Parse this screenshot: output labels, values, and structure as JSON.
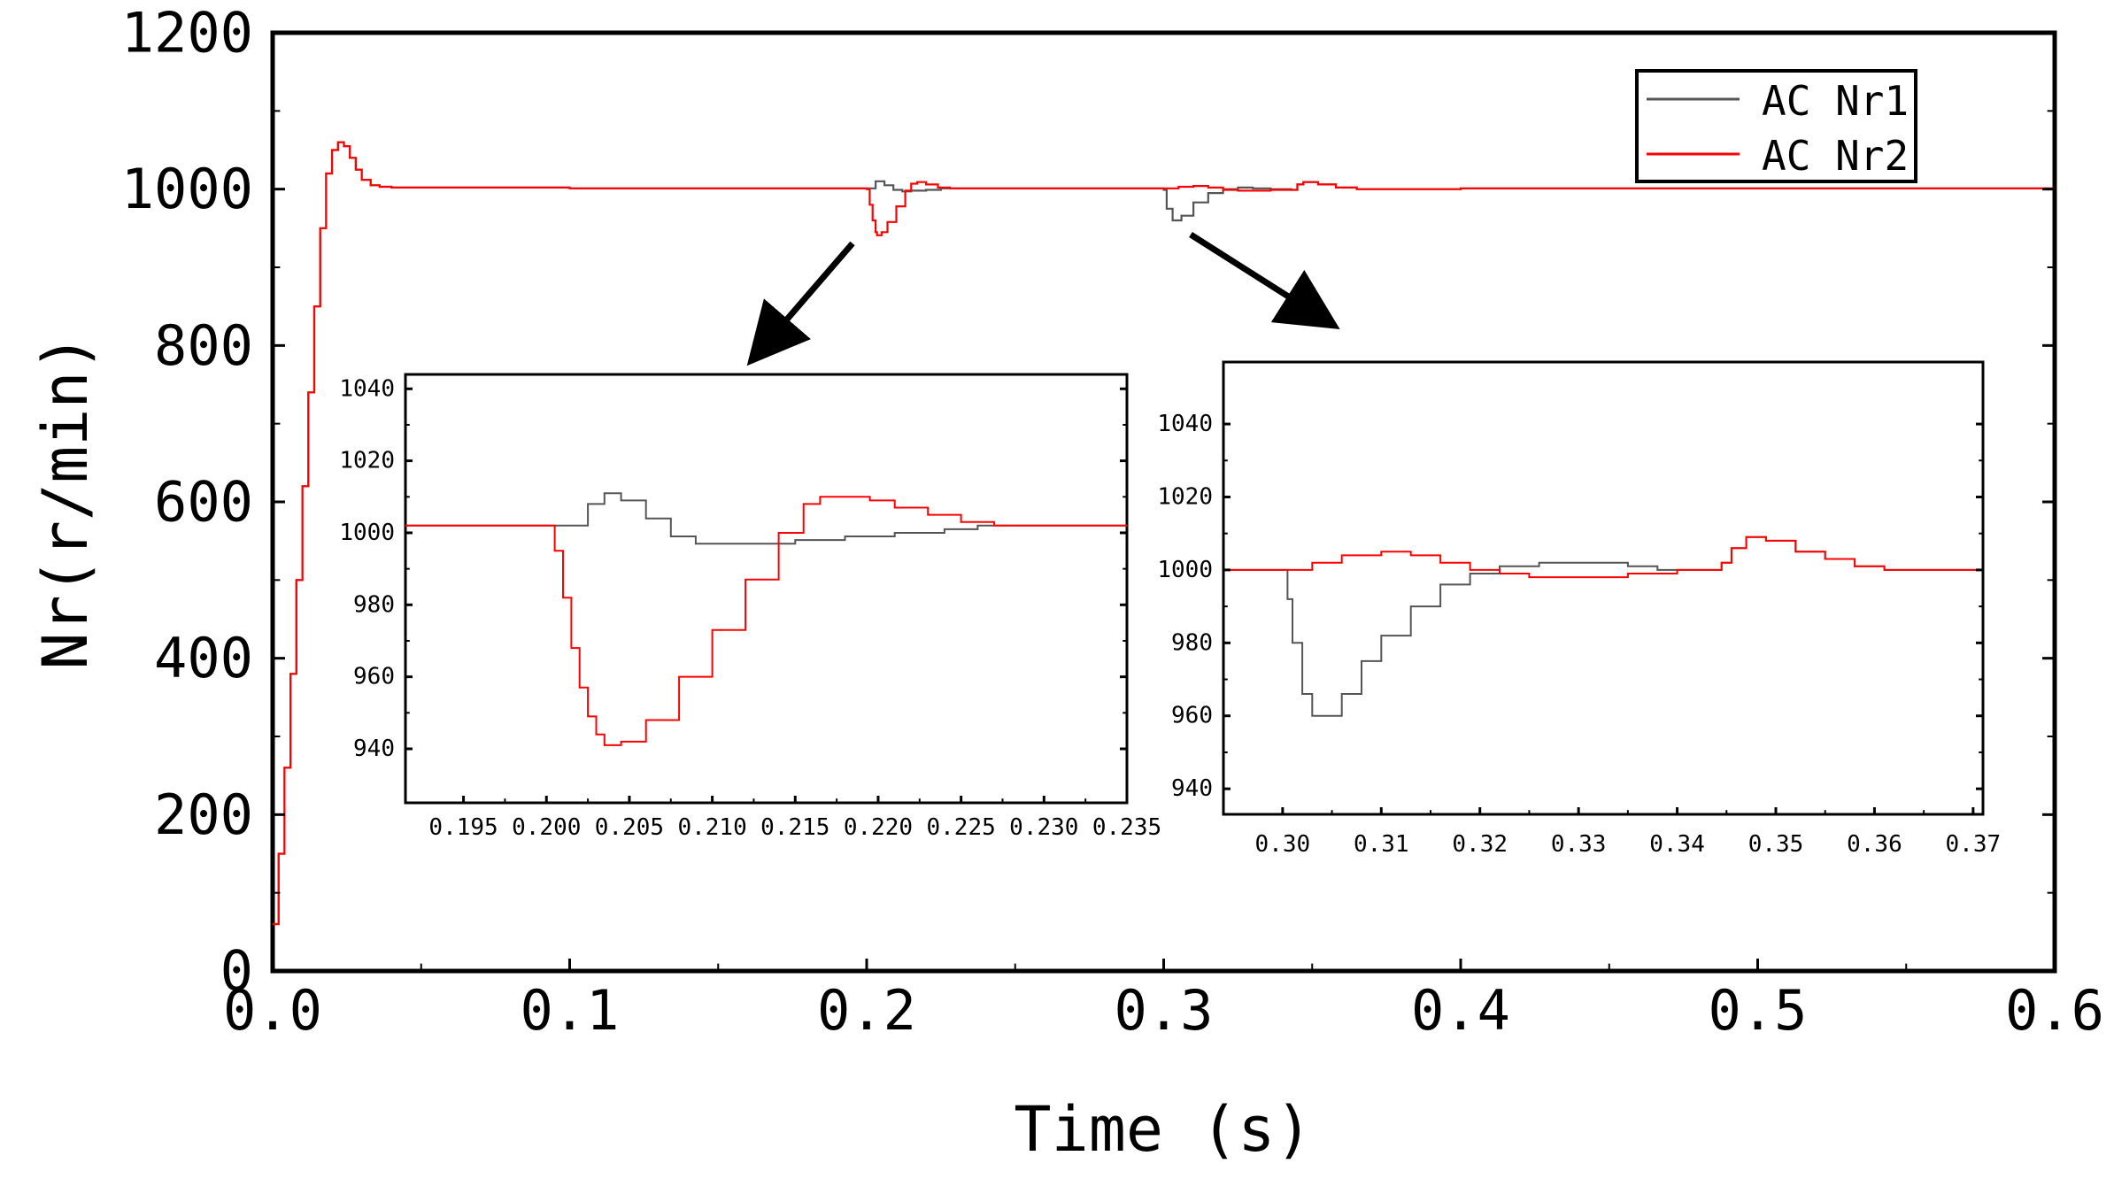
{
  "chart_data": [
    {
      "id": "main",
      "type": "line",
      "title": "",
      "xlabel": "Time (s)",
      "ylabel": "Nr(r/min)",
      "xlim": [
        0,
        0.6
      ],
      "ylim": [
        0,
        1200
      ],
      "xticks": [
        0.0,
        0.1,
        0.2,
        0.3,
        0.4,
        0.5,
        0.6
      ],
      "xtick_labels": [
        "0.0",
        "0.1",
        "0.2",
        "0.3",
        "0.4",
        "0.5",
        "0.6"
      ],
      "yticks": [
        0,
        200,
        400,
        600,
        800,
        1000,
        1200
      ],
      "ytick_labels": [
        "0",
        "200",
        "400",
        "600",
        "800",
        "1000",
        "1200"
      ],
      "grid": false,
      "legend_position": "top-right",
      "series": [
        {
          "name": "AC Nr1",
          "color": "#555555",
          "points": [
            [
              0.0,
              60
            ],
            [
              0.002,
              150
            ],
            [
              0.004,
              260
            ],
            [
              0.006,
              380
            ],
            [
              0.008,
              500
            ],
            [
              0.01,
              620
            ],
            [
              0.012,
              740
            ],
            [
              0.014,
              850
            ],
            [
              0.016,
              950
            ],
            [
              0.018,
              1020
            ],
            [
              0.02,
              1050
            ],
            [
              0.022,
              1060
            ],
            [
              0.024,
              1055
            ],
            [
              0.026,
              1040
            ],
            [
              0.028,
              1025
            ],
            [
              0.03,
              1012
            ],
            [
              0.033,
              1005
            ],
            [
              0.036,
              1003
            ],
            [
              0.04,
              1002
            ],
            [
              0.1,
              1001
            ],
            [
              0.198,
              1001
            ],
            [
              0.2,
              1001
            ],
            [
              0.203,
              1010
            ],
            [
              0.206,
              1005
            ],
            [
              0.209,
              999
            ],
            [
              0.212,
              997
            ],
            [
              0.215,
              998
            ],
            [
              0.22,
              999
            ],
            [
              0.225,
              1001
            ],
            [
              0.298,
              1001
            ],
            [
              0.3,
              999
            ],
            [
              0.301,
              975
            ],
            [
              0.303,
              960
            ],
            [
              0.306,
              966
            ],
            [
              0.31,
              983
            ],
            [
              0.315,
              995
            ],
            [
              0.32,
              1000
            ],
            [
              0.325,
              1002
            ],
            [
              0.33,
              1001
            ],
            [
              0.336,
              1000
            ],
            [
              0.343,
              999
            ],
            [
              0.345,
              1006
            ],
            [
              0.347,
              1009
            ],
            [
              0.352,
              1006
            ],
            [
              0.358,
              1002
            ],
            [
              0.365,
              1000
            ],
            [
              0.4,
              1001
            ],
            [
              0.5,
              1001
            ],
            [
              0.6,
              1001
            ]
          ]
        },
        {
          "name": "AC Nr2",
          "color": "#ff0000",
          "points": [
            [
              0.0,
              60
            ],
            [
              0.002,
              150
            ],
            [
              0.004,
              260
            ],
            [
              0.006,
              380
            ],
            [
              0.008,
              500
            ],
            [
              0.01,
              620
            ],
            [
              0.012,
              740
            ],
            [
              0.014,
              850
            ],
            [
              0.016,
              950
            ],
            [
              0.018,
              1020
            ],
            [
              0.02,
              1050
            ],
            [
              0.022,
              1060
            ],
            [
              0.024,
              1055
            ],
            [
              0.026,
              1040
            ],
            [
              0.028,
              1025
            ],
            [
              0.03,
              1012
            ],
            [
              0.033,
              1005
            ],
            [
              0.036,
              1003
            ],
            [
              0.04,
              1002
            ],
            [
              0.1,
              1001
            ],
            [
              0.198,
              1001
            ],
            [
              0.2,
              1000
            ],
            [
              0.201,
              980
            ],
            [
              0.202,
              960
            ],
            [
              0.203,
              945
            ],
            [
              0.2035,
              941
            ],
            [
              0.205,
              945
            ],
            [
              0.207,
              958
            ],
            [
              0.21,
              978
            ],
            [
              0.213,
              998
            ],
            [
              0.215,
              1007
            ],
            [
              0.217,
              1009
            ],
            [
              0.22,
              1006
            ],
            [
              0.224,
              1002
            ],
            [
              0.228,
              1001
            ],
            [
              0.298,
              1001
            ],
            [
              0.3,
              1001
            ],
            [
              0.305,
              1003
            ],
            [
              0.31,
              1004
            ],
            [
              0.315,
              1002
            ],
            [
              0.32,
              999
            ],
            [
              0.325,
              998
            ],
            [
              0.33,
              998
            ],
            [
              0.336,
              999
            ],
            [
              0.343,
              999
            ],
            [
              0.345,
              1006
            ],
            [
              0.347,
              1009
            ],
            [
              0.352,
              1006
            ],
            [
              0.358,
              1002
            ],
            [
              0.365,
              1000
            ],
            [
              0.4,
              1001
            ],
            [
              0.5,
              1001
            ],
            [
              0.6,
              1001
            ]
          ]
        }
      ]
    },
    {
      "id": "inset-1",
      "type": "line",
      "title": "",
      "xlabel": "",
      "ylabel": "",
      "xlim": [
        0.1915,
        0.235
      ],
      "ylim": [
        925,
        1044
      ],
      "xticks": [
        0.195,
        0.2,
        0.205,
        0.21,
        0.215,
        0.22,
        0.225,
        0.23,
        0.235
      ],
      "xtick_labels": [
        "0.195",
        "0.200",
        "0.205",
        "0.210",
        "0.215",
        "0.220",
        "0.225",
        "0.230",
        "0.235"
      ],
      "yticks": [
        940,
        960,
        980,
        1000,
        1020,
        1040
      ],
      "ytick_labels": [
        "940",
        "960",
        "980",
        "1000",
        "1020",
        "1040"
      ],
      "grid": false,
      "series": [
        {
          "name": "AC Nr1",
          "color": "#555555",
          "points": [
            [
              0.1915,
              1002
            ],
            [
              0.2,
              1002
            ],
            [
              0.201,
              1002
            ],
            [
              0.2025,
              1008
            ],
            [
              0.2035,
              1011
            ],
            [
              0.2045,
              1009
            ],
            [
              0.206,
              1004
            ],
            [
              0.2075,
              999
            ],
            [
              0.209,
              997
            ],
            [
              0.211,
              997
            ],
            [
              0.213,
              997
            ],
            [
              0.215,
              998
            ],
            [
              0.218,
              999
            ],
            [
              0.221,
              1000
            ],
            [
              0.224,
              1001
            ],
            [
              0.226,
              1002
            ],
            [
              0.228,
              1002
            ],
            [
              0.235,
              1002
            ]
          ]
        },
        {
          "name": "AC Nr2",
          "color": "#ff0000",
          "points": [
            [
              0.1915,
              1002
            ],
            [
              0.2,
              1002
            ],
            [
              0.2005,
              995
            ],
            [
              0.201,
              982
            ],
            [
              0.2015,
              968
            ],
            [
              0.202,
              957
            ],
            [
              0.2025,
              949
            ],
            [
              0.203,
              944
            ],
            [
              0.2035,
              941
            ],
            [
              0.2045,
              942
            ],
            [
              0.206,
              948
            ],
            [
              0.208,
              960
            ],
            [
              0.21,
              973
            ],
            [
              0.212,
              987
            ],
            [
              0.214,
              1000
            ],
            [
              0.2155,
              1008
            ],
            [
              0.2165,
              1010
            ],
            [
              0.218,
              1010
            ],
            [
              0.2195,
              1009
            ],
            [
              0.221,
              1007
            ],
            [
              0.223,
              1005
            ],
            [
              0.225,
              1003
            ],
            [
              0.227,
              1002
            ],
            [
              0.235,
              1002
            ]
          ]
        }
      ]
    },
    {
      "id": "inset-2",
      "type": "line",
      "title": "",
      "xlabel": "",
      "ylabel": "",
      "xlim": [
        0.294,
        0.371
      ],
      "ylim": [
        933,
        1057
      ],
      "xticks": [
        0.3,
        0.31,
        0.32,
        0.33,
        0.34,
        0.35,
        0.36,
        0.37
      ],
      "xtick_labels": [
        "0.30",
        "0.31",
        "0.32",
        "0.33",
        "0.34",
        "0.35",
        "0.36",
        "0.37"
      ],
      "yticks": [
        940,
        960,
        980,
        1000,
        1020,
        1040
      ],
      "ytick_labels": [
        "940",
        "960",
        "980",
        "1000",
        "1020",
        "1040"
      ],
      "grid": false,
      "series": [
        {
          "name": "AC Nr1",
          "color": "#555555",
          "points": [
            [
              0.294,
              1000
            ],
            [
              0.3,
              1000
            ],
            [
              0.3005,
              992
            ],
            [
              0.301,
              980
            ],
            [
              0.302,
              966
            ],
            [
              0.303,
              960
            ],
            [
              0.304,
              960
            ],
            [
              0.306,
              966
            ],
            [
              0.308,
              975
            ],
            [
              0.31,
              982
            ],
            [
              0.313,
              990
            ],
            [
              0.316,
              996
            ],
            [
              0.319,
              999
            ],
            [
              0.322,
              1001
            ],
            [
              0.326,
              1002
            ],
            [
              0.33,
              1002
            ],
            [
              0.335,
              1001
            ],
            [
              0.338,
              1000
            ],
            [
              0.3435,
              1000
            ],
            [
              0.3445,
              1002
            ],
            [
              0.3455,
              1006
            ],
            [
              0.347,
              1009
            ],
            [
              0.349,
              1008
            ],
            [
              0.352,
              1005
            ],
            [
              0.355,
              1003
            ],
            [
              0.358,
              1001
            ],
            [
              0.361,
              1000
            ],
            [
              0.371,
              1000
            ]
          ]
        },
        {
          "name": "AC Nr2",
          "color": "#ff0000",
          "points": [
            [
              0.294,
              1000
            ],
            [
              0.3,
              1000
            ],
            [
              0.303,
              1002
            ],
            [
              0.306,
              1004
            ],
            [
              0.31,
              1005
            ],
            [
              0.313,
              1004
            ],
            [
              0.316,
              1002
            ],
            [
              0.319,
              1000
            ],
            [
              0.322,
              999
            ],
            [
              0.325,
              998
            ],
            [
              0.33,
              998
            ],
            [
              0.335,
              999
            ],
            [
              0.34,
              1000
            ],
            [
              0.3435,
              1000
            ],
            [
              0.3445,
              1002
            ],
            [
              0.3455,
              1006
            ],
            [
              0.347,
              1009
            ],
            [
              0.349,
              1008
            ],
            [
              0.352,
              1005
            ],
            [
              0.355,
              1003
            ],
            [
              0.358,
              1001
            ],
            [
              0.361,
              1000
            ],
            [
              0.371,
              1000
            ]
          ]
        }
      ]
    }
  ],
  "legend": {
    "entries": [
      {
        "label": "AC Nr1",
        "color": "#555555"
      },
      {
        "label": "AC Nr2",
        "color": "#ff0000"
      }
    ]
  }
}
